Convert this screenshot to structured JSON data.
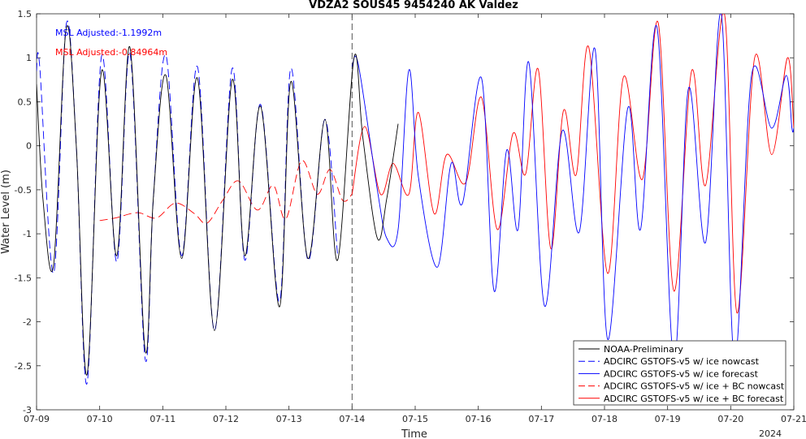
{
  "chart_data": {
    "type": "line",
    "title": "VDZA2 SOUS45 9454240 AK Valdez",
    "xlabel": "Time",
    "ylabel": "Water Level (m)",
    "x_tick_labels": [
      "07-09",
      "07-10",
      "07-11",
      "07-12",
      "07-13",
      "07-14",
      "07-15",
      "07-16",
      "07-17",
      "07-18",
      "07-19",
      "07-20",
      "07-21"
    ],
    "year_label": "2024",
    "x_unit": "days since 07-09 00:00",
    "xlim": [
      0,
      12
    ],
    "ylim": [
      -3,
      1.5
    ],
    "y_ticks": [
      -3,
      -2.5,
      -2,
      -1.5,
      -1,
      -0.5,
      0,
      0.5,
      1,
      1.5
    ],
    "grid": false,
    "legend_position": "bottom-right",
    "vertical_marker_x": 5,
    "annotations": [
      {
        "text": "MSL Adjusted:-1.1992m",
        "color": "#0000ff"
      },
      {
        "text": "MSL Adjusted:-0.84964m",
        "color": "#ff0000"
      }
    ],
    "series": [
      {
        "name": "NOAA-Preliminary",
        "color": "#000000",
        "style": "solid",
        "x": [
          0.0,
          0.1,
          0.27,
          0.47,
          0.63,
          0.8,
          1.03,
          1.27,
          1.48,
          1.72,
          1.85,
          2.05,
          2.3,
          2.55,
          2.82,
          3.1,
          3.3,
          3.55,
          3.85,
          4.03,
          4.3,
          4.57,
          4.77,
          5.03,
          5.17,
          5.4,
          5.55,
          5.73
        ],
        "y": [
          0.7,
          -0.6,
          -1.35,
          1.33,
          0.0,
          -2.6,
          0.85,
          -1.25,
          1.12,
          -2.32,
          -0.6,
          0.8,
          -1.28,
          0.77,
          -2.1,
          0.75,
          -1.25,
          0.45,
          -1.83,
          0.73,
          -1.28,
          0.3,
          -1.3,
          1.0,
          0.1,
          -1.05,
          -0.6,
          0.25
        ]
      },
      {
        "name": "ADCIRC GSTOFS-v5 w/ ice nowcast",
        "color": "#0000ff",
        "style": "dashed",
        "x": [
          0.0,
          0.05,
          0.27,
          0.47,
          0.63,
          0.8,
          1.03,
          1.27,
          1.48,
          1.72,
          1.85,
          2.05,
          2.3,
          2.55,
          2.82,
          3.1,
          3.3,
          3.55,
          3.85,
          4.03,
          4.3,
          4.57,
          4.77
        ],
        "y": [
          0.85,
          0.9,
          -1.45,
          1.38,
          0.0,
          -2.7,
          1.02,
          -1.32,
          1.05,
          -2.42,
          -0.6,
          1.03,
          -1.25,
          0.9,
          -2.1,
          0.88,
          -1.3,
          0.47,
          -1.77,
          0.88,
          -1.3,
          0.3,
          -1.25
        ]
      },
      {
        "name": "ADCIRC GSTOFS-v5 w/ ice forecast",
        "color": "#0000ff",
        "style": "solid",
        "x": [
          5.0,
          5.1,
          5.4,
          5.55,
          5.73,
          5.9,
          6.05,
          6.35,
          6.57,
          6.75,
          7.05,
          7.25,
          7.45,
          7.63,
          7.8,
          8.05,
          8.33,
          8.6,
          8.85,
          9.05,
          9.37,
          9.57,
          9.83,
          10.1,
          10.33,
          10.6,
          10.85,
          11.06,
          11.33,
          11.65,
          11.88,
          11.97,
          12.0
        ],
        "y": [
          0.9,
          0.92,
          -0.5,
          -1.05,
          -0.95,
          0.86,
          -0.35,
          -1.38,
          -0.2,
          -0.65,
          0.77,
          -1.65,
          -0.05,
          -0.95,
          0.95,
          -1.82,
          0.17,
          -0.98,
          1.1,
          -2.2,
          0.43,
          -0.95,
          1.35,
          -2.45,
          0.65,
          -1.1,
          1.5,
          -2.45,
          0.8,
          0.2,
          0.8,
          0.2,
          0.2
        ]
      },
      {
        "name": "ADCIRC GSTOFS-v5 w/ ice + BC nowcast",
        "color": "#ff0000",
        "style": "dashed",
        "x": [
          1.0,
          1.25,
          1.6,
          1.9,
          2.2,
          2.5,
          2.7,
          2.95,
          3.2,
          3.5,
          3.75,
          3.95,
          4.2,
          4.45,
          4.65,
          4.85,
          5.0
        ],
        "y": [
          -0.85,
          -0.82,
          -0.76,
          -0.82,
          -0.65,
          -0.77,
          -0.88,
          -0.62,
          -0.4,
          -0.73,
          -0.45,
          -0.83,
          -0.17,
          -0.55,
          -0.27,
          -0.62,
          -0.55
        ]
      },
      {
        "name": "ADCIRC GSTOFS-v5 w/ ice + BC forecast",
        "color": "#ff0000",
        "style": "solid",
        "x": [
          5.0,
          5.2,
          5.45,
          5.65,
          5.9,
          6.05,
          6.3,
          6.5,
          6.8,
          7.05,
          7.3,
          7.55,
          7.75,
          7.95,
          8.15,
          8.35,
          8.55,
          8.75,
          9.05,
          9.3,
          9.6,
          9.85,
          10.1,
          10.38,
          10.6,
          10.9,
          11.1,
          11.38,
          11.65,
          11.9,
          12.0
        ],
        "y": [
          -0.55,
          0.22,
          -0.55,
          -0.2,
          -0.55,
          0.38,
          -0.77,
          -0.1,
          -0.42,
          0.55,
          -0.95,
          0.14,
          -0.32,
          0.87,
          -1.17,
          0.4,
          -0.33,
          1.12,
          -1.45,
          0.78,
          -0.38,
          1.4,
          -1.65,
          0.85,
          -0.45,
          1.5,
          -1.9,
          1.0,
          -0.1,
          1.0,
          0.2
        ]
      }
    ]
  }
}
